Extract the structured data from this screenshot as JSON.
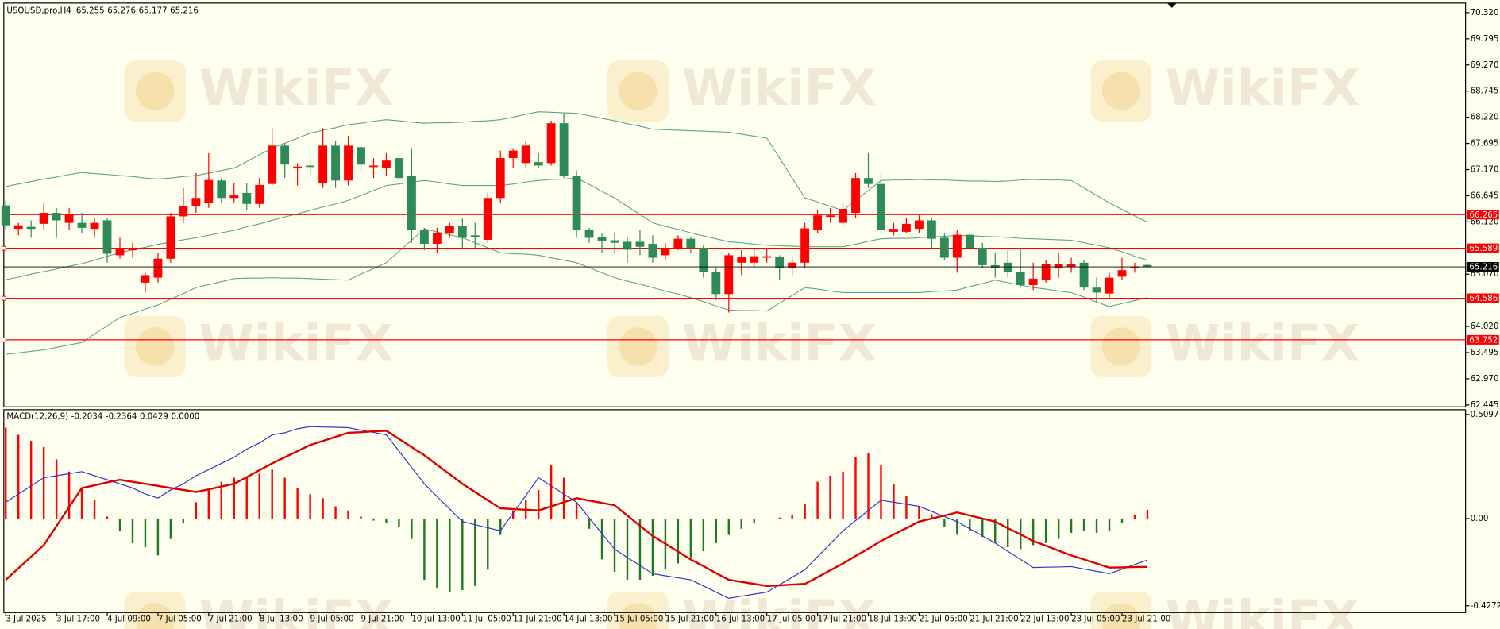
{
  "chart_data": [
    {
      "type": "candlestick",
      "title": "USOUSD,pro,H4",
      "watermark": "WikiFX",
      "categories": [
        "3 Jul 2025",
        null,
        null,
        null,
        "3 Jul 17:00",
        null,
        null,
        null,
        "4 Jul 09:00",
        null,
        null,
        null,
        "7 Jul 05:00",
        null,
        null,
        null,
        "7 Jul 21:00",
        null,
        null,
        null,
        "8 Jul 13:00",
        null,
        null,
        null,
        "9 Jul 05:00",
        null,
        null,
        null,
        "9 Jul 21:00",
        null,
        null,
        null,
        "10 Jul 13:00",
        null,
        null,
        null,
        "11 Jul 05:00",
        null,
        null,
        null,
        "11 Jul 21:00",
        null,
        null,
        null,
        "14 Jul 13:00",
        null,
        null,
        null,
        "15 Jul 05:00",
        null,
        null,
        null,
        "15 Jul 21:00",
        null,
        null,
        null,
        "16 Jul 13:00",
        null,
        null,
        null,
        "17 Jul 05:00",
        null,
        null,
        null,
        "17 Jul 21:00",
        null,
        null,
        null,
        "18 Jul 13:00",
        null,
        null,
        null,
        "21 Jul 05:00",
        null,
        null,
        null,
        "21 Jul 21:00",
        null,
        null,
        null,
        "22 Jul 13:00",
        null,
        null,
        null,
        "23 Jul 05:00",
        null,
        null,
        null,
        "23 Jul 21:00",
        null,
        null
      ],
      "open": [
        66.45,
        65.98,
        66.02,
        66.08,
        66.3,
        66.1,
        66.1,
        65.98,
        66.15,
        65.45,
        65.55,
        64.9,
        65.0,
        65.38,
        66.23,
        66.44,
        66.5,
        66.95,
        66.6,
        66.7,
        66.48,
        66.88,
        67.65,
        67.2,
        67.25,
        66.9,
        67.65,
        66.95,
        67.62,
        67.22,
        67.2,
        67.4,
        67.05,
        65.95,
        65.68,
        65.9,
        66.03,
        65.85,
        65.76,
        66.6,
        67.4,
        67.3,
        67.32,
        67.3,
        68.1,
        67.05,
        65.95,
        65.82,
        65.75,
        65.72,
        65.72,
        65.68,
        65.45,
        65.6,
        65.78,
        65.6,
        65.12,
        64.67,
        65.3,
        65.3,
        65.4,
        65.42,
        65.2,
        65.3,
        65.95,
        66.22,
        66.1,
        66.3,
        67.0,
        66.88,
        65.92,
        65.92,
        65.98,
        66.15,
        65.8,
        65.4,
        65.86,
        65.6,
        65.25,
        65.3,
        65.12,
        64.85,
        64.95,
        65.2,
        65.22,
        65.3,
        64.8,
        64.68,
        65.02,
        65.2,
        65.255
      ],
      "high": [
        66.55,
        66.1,
        66.15,
        66.5,
        66.4,
        66.4,
        66.3,
        66.2,
        66.2,
        65.8,
        65.7,
        65.1,
        65.5,
        66.3,
        66.8,
        67.1,
        67.5,
        67.0,
        66.9,
        66.9,
        67.0,
        68.0,
        67.7,
        67.3,
        67.35,
        68.0,
        67.75,
        67.85,
        67.65,
        67.4,
        67.5,
        67.45,
        67.6,
        66.0,
        66.0,
        66.1,
        66.2,
        66.1,
        66.7,
        67.55,
        67.6,
        67.75,
        67.5,
        68.15,
        68.3,
        67.15,
        66.0,
        65.9,
        65.9,
        65.8,
        65.95,
        65.85,
        65.7,
        65.85,
        65.82,
        65.65,
        65.2,
        65.5,
        65.55,
        65.6,
        65.6,
        65.45,
        65.4,
        66.1,
        66.35,
        66.4,
        66.5,
        67.1,
        67.5,
        67.1,
        66.1,
        66.2,
        66.25,
        66.2,
        65.9,
        65.95,
        65.9,
        65.7,
        65.5,
        65.55,
        65.6,
        65.3,
        65.35,
        65.5,
        65.4,
        65.35,
        65.0,
        65.1,
        65.4,
        65.3,
        65.276
      ],
      "low": [
        65.95,
        65.85,
        65.8,
        65.95,
        65.8,
        65.95,
        65.9,
        65.8,
        65.3,
        65.38,
        65.4,
        64.7,
        64.9,
        65.3,
        66.1,
        66.3,
        66.4,
        66.5,
        66.5,
        66.35,
        66.4,
        66.85,
        67.0,
        66.85,
        67.05,
        66.8,
        66.8,
        66.85,
        67.1,
        67.0,
        67.05,
        66.95,
        65.7,
        65.55,
        65.5,
        65.8,
        65.6,
        65.6,
        65.7,
        66.5,
        67.2,
        67.2,
        67.2,
        67.25,
        67.0,
        65.8,
        65.7,
        65.5,
        65.5,
        65.3,
        65.45,
        65.3,
        65.35,
        65.55,
        65.5,
        65.0,
        64.55,
        64.3,
        65.05,
        65.2,
        65.3,
        64.95,
        65.05,
        65.2,
        65.9,
        66.1,
        66.05,
        66.2,
        66.8,
        65.9,
        65.85,
        65.9,
        65.9,
        65.6,
        65.35,
        65.1,
        65.55,
        65.2,
        65.0,
        65.0,
        64.8,
        64.75,
        64.9,
        65.0,
        65.1,
        64.75,
        64.5,
        64.6,
        64.95,
        65.1,
        65.177
      ],
      "close": [
        66.05,
        66.05,
        65.98,
        66.3,
        66.15,
        66.28,
        66.0,
        66.1,
        65.48,
        65.6,
        65.6,
        65.05,
        65.38,
        66.23,
        66.44,
        66.6,
        66.96,
        66.6,
        66.65,
        66.48,
        66.86,
        67.65,
        67.27,
        67.23,
        67.22,
        67.65,
        66.95,
        67.65,
        67.27,
        67.25,
        67.35,
        67.0,
        65.95,
        65.68,
        65.9,
        66.03,
        65.8,
        65.82,
        66.6,
        67.4,
        67.55,
        67.65,
        67.25,
        68.1,
        67.05,
        65.95,
        65.8,
        65.74,
        65.7,
        65.56,
        65.62,
        65.4,
        65.6,
        65.78,
        65.6,
        65.12,
        64.67,
        65.45,
        65.42,
        65.43,
        65.43,
        65.2,
        65.3,
        65.99,
        66.25,
        66.25,
        66.38,
        67.0,
        66.88,
        65.95,
        65.98,
        66.08,
        66.15,
        65.78,
        65.4,
        65.86,
        65.6,
        65.25,
        65.2,
        65.12,
        64.85,
        64.98,
        65.28,
        65.27,
        65.28,
        64.8,
        64.7,
        65.0,
        65.15,
        65.22,
        65.216
      ],
      "up_color": "#ff0000",
      "down_color": "#2e8b57",
      "series": [
        {
          "color": "#5aa488",
          "values": [
            66.83,
            66.88,
            66.93,
            66.98,
            67.02,
            67.07,
            67.11,
            67.09,
            67.07,
            67.05,
            67.03,
            67.0,
            66.98,
            67.0,
            67.03,
            67.05,
            67.1,
            67.15,
            67.2,
            67.33,
            67.47,
            67.6,
            67.7,
            67.8,
            67.9,
            67.96,
            68.01,
            68.07,
            68.1,
            68.14,
            68.17,
            68.15,
            68.12,
            68.1,
            68.11,
            68.11,
            68.12,
            68.14,
            68.15,
            68.17,
            68.22,
            68.28,
            68.33,
            68.32,
            68.31,
            68.3,
            68.25,
            68.2,
            68.15,
            68.09,
            68.04,
            67.98,
            67.97,
            67.96,
            67.95,
            67.94,
            67.93,
            67.92,
            67.88,
            67.84,
            67.8,
            67.4,
            67.0,
            66.6,
            66.52,
            66.43,
            66.35,
            66.55,
            66.75,
            66.95,
            66.96,
            66.96,
            66.97,
            66.96,
            66.96,
            66.95,
            66.94,
            66.94,
            66.93,
            66.94,
            66.96,
            66.97,
            66.96,
            66.96,
            66.95,
            66.8,
            66.65,
            66.5,
            66.37,
            66.24,
            66.11
          ]
        },
        {
          "color": "#5aa488",
          "values": [
            64.96,
            65.01,
            65.07,
            65.12,
            65.17,
            65.23,
            65.28,
            65.35,
            65.43,
            65.5,
            65.56,
            65.61,
            65.67,
            65.71,
            65.76,
            65.8,
            65.85,
            65.9,
            65.95,
            66.02,
            66.08,
            66.15,
            66.22,
            66.28,
            66.35,
            66.42,
            66.48,
            66.55,
            66.65,
            66.75,
            66.85,
            66.88,
            66.92,
            66.95,
            66.92,
            66.88,
            66.85,
            66.85,
            66.85,
            66.85,
            66.88,
            66.92,
            66.95,
            66.97,
            66.98,
            67.0,
            66.87,
            66.73,
            66.6,
            66.43,
            66.27,
            66.1,
            66.03,
            65.97,
            65.9,
            65.84,
            65.78,
            65.72,
            65.7,
            65.67,
            65.65,
            65.64,
            65.63,
            65.62,
            65.62,
            65.62,
            65.62,
            65.67,
            65.73,
            65.78,
            65.79,
            65.79,
            65.8,
            65.82,
            65.83,
            65.85,
            65.84,
            65.83,
            65.82,
            65.81,
            65.79,
            65.78,
            65.77,
            65.76,
            65.75,
            65.7,
            65.65,
            65.6,
            65.52,
            65.43,
            65.35
          ]
        },
        {
          "color": "#5aa488",
          "values": [
            63.46,
            63.49,
            63.52,
            63.55,
            63.6,
            63.65,
            63.7,
            63.87,
            64.03,
            64.2,
            64.28,
            64.37,
            64.45,
            64.57,
            64.68,
            64.8,
            64.86,
            64.92,
            64.98,
            64.99,
            64.99,
            65.0,
            64.99,
            64.99,
            64.98,
            64.97,
            64.96,
            64.95,
            65.07,
            65.18,
            65.3,
            65.53,
            65.75,
            65.98,
            65.92,
            65.86,
            65.8,
            65.7,
            65.6,
            65.5,
            65.48,
            65.47,
            65.45,
            65.4,
            65.35,
            65.3,
            65.2,
            65.1,
            65.0,
            64.93,
            64.87,
            64.8,
            64.73,
            64.67,
            64.6,
            64.52,
            64.43,
            64.35,
            64.34,
            64.34,
            64.33,
            64.49,
            64.64,
            64.8,
            64.77,
            64.73,
            64.7,
            64.7,
            64.7,
            64.7,
            64.7,
            64.7,
            64.7,
            64.72,
            64.73,
            64.75,
            64.82,
            64.88,
            64.95,
            64.9,
            64.85,
            64.8,
            64.77,
            64.73,
            64.7,
            64.61,
            64.51,
            64.42,
            64.48,
            64.54,
            64.6
          ]
        }
      ],
      "levels": [
        66.265,
        65.589,
        64.586,
        63.752
      ],
      "level_color": "#ff0000",
      "current_color": "#000000",
      "ylim": [
        62.407,
        70.512
      ],
      "yticks": [
        {
          "value": 70.32,
          "label": "70.320"
        },
        69.795,
        {
          "value": 69.27,
          "label": "69.270"
        },
        68.745,
        {
          "value": 68.22,
          "label": "68.220"
        },
        67.695,
        {
          "value": 67.17,
          "label": "67.170"
        },
        66.645,
        {
          "value": 66.12,
          "label": "66.120"
        },
        {
          "value": 65.07,
          "label": "65.070"
        },
        {
          "value": 64.02,
          "label": "64.020"
        },
        63.495,
        {
          "value": 62.97,
          "label": "62.970"
        },
        62.445
      ]
    },
    {
      "type": "macd",
      "title": "MACD(12,26,9)",
      "histogram": {
        "up_color": "#ff0000",
        "down_color": "#1f7a1f",
        "values": [
          0.445,
          0.41,
          0.38,
          0.35,
          0.29,
          0.23,
          0.15,
          0.09,
          0.01,
          -0.06,
          -0.12,
          -0.14,
          -0.18,
          -0.1,
          -0.02,
          0.08,
          0.14,
          0.18,
          0.2,
          0.2,
          0.22,
          0.24,
          0.2,
          0.15,
          0.12,
          0.1,
          0.06,
          0.04,
          0.01,
          -0.01,
          -0.02,
          -0.04,
          -0.1,
          -0.3,
          -0.34,
          -0.36,
          -0.35,
          -0.33,
          -0.25,
          -0.08,
          0.04,
          0.09,
          0.14,
          0.26,
          0.2,
          0.08,
          -0.05,
          -0.2,
          -0.26,
          -0.3,
          -0.3,
          -0.28,
          -0.25,
          -0.22,
          -0.19,
          -0.16,
          -0.12,
          -0.08,
          -0.05,
          -0.02,
          0,
          0.005,
          0.02,
          0.07,
          0.18,
          0.21,
          0.23,
          0.3,
          0.32,
          0.26,
          0.17,
          0.11,
          0.06,
          0.02,
          -0.04,
          -0.08,
          -0.06,
          -0.09,
          -0.12,
          -0.14,
          -0.15,
          -0.13,
          -0.12,
          -0.1,
          -0.07,
          -0.06,
          -0.07,
          -0.06,
          -0.02,
          0.02,
          0.0429
        ]
      },
      "series": [
        {
          "color": "#3333cc",
          "values": [
            0.08,
            0.12,
            0.16,
            0.2,
            0.21,
            0.22,
            0.23,
            0.21,
            0.19,
            0.17,
            0.15,
            0.12,
            0.1,
            0.14,
            0.17,
            0.21,
            0.24,
            0.27,
            0.3,
            0.34,
            0.37,
            0.41,
            0.42,
            0.44,
            0.45,
            0.448,
            0.447,
            0.445,
            0.433,
            0.422,
            0.41,
            0.33,
            0.25,
            0.17,
            0.108,
            0.047,
            -0.015,
            -0.03,
            -0.045,
            -0.06,
            0.027,
            0.113,
            0.2,
            0.16,
            0.12,
            0.08,
            0.003,
            -0.073,
            -0.15,
            -0.19,
            -0.23,
            -0.27,
            -0.28,
            -0.29,
            -0.3,
            -0.33,
            -0.36,
            -0.39,
            -0.38,
            -0.37,
            -0.36,
            -0.323,
            -0.287,
            -0.25,
            -0.187,
            -0.123,
            -0.06,
            -0.01,
            0.04,
            0.09,
            0.08,
            0.07,
            0.06,
            0.035,
            0.01,
            -0.015,
            -0.05,
            -0.085,
            -0.12,
            -0.16,
            -0.2,
            -0.24,
            -0.238,
            -0.237,
            -0.235,
            -0.247,
            -0.258,
            -0.27,
            -0.248,
            -0.225,
            -0.2034
          ]
        },
        {
          "color": "#dd0000",
          "values": [
            -0.3,
            -0.243,
            -0.187,
            -0.13,
            -0.037,
            0.057,
            0.15,
            0.163,
            0.177,
            0.19,
            0.18,
            0.17,
            0.16,
            0.15,
            0.14,
            0.13,
            0.143,
            0.157,
            0.17,
            0.203,
            0.237,
            0.27,
            0.3,
            0.33,
            0.36,
            0.38,
            0.4,
            0.42,
            0.423,
            0.427,
            0.43,
            0.39,
            0.35,
            0.31,
            0.263,
            0.217,
            0.17,
            0.13,
            0.09,
            0.05,
            0.047,
            0.043,
            0.04,
            0.06,
            0.08,
            0.1,
            0.088,
            0.077,
            0.065,
            0.015,
            -0.035,
            -0.085,
            -0.123,
            -0.162,
            -0.2,
            -0.233,
            -0.267,
            -0.3,
            -0.31,
            -0.32,
            -0.33,
            -0.327,
            -0.323,
            -0.32,
            -0.287,
            -0.253,
            -0.22,
            -0.183,
            -0.147,
            -0.11,
            -0.078,
            -0.047,
            -0.015,
            0,
            0.015,
            0.03,
            0.015,
            0,
            -0.015,
            -0.047,
            -0.078,
            -0.11,
            -0.133,
            -0.157,
            -0.18,
            -0.2,
            -0.22,
            -0.24,
            -0.239,
            -0.237,
            -0.2364
          ]
        }
      ],
      "title_extra": {
        "value": 0,
        "label": "0.0000"
      },
      "ylim": [
        -0.46,
        0.533
      ],
      "yticks": [
        0.5097,
        {
          "value": 0,
          "label": "0.00"
        },
        -0.4272
      ]
    }
  ]
}
